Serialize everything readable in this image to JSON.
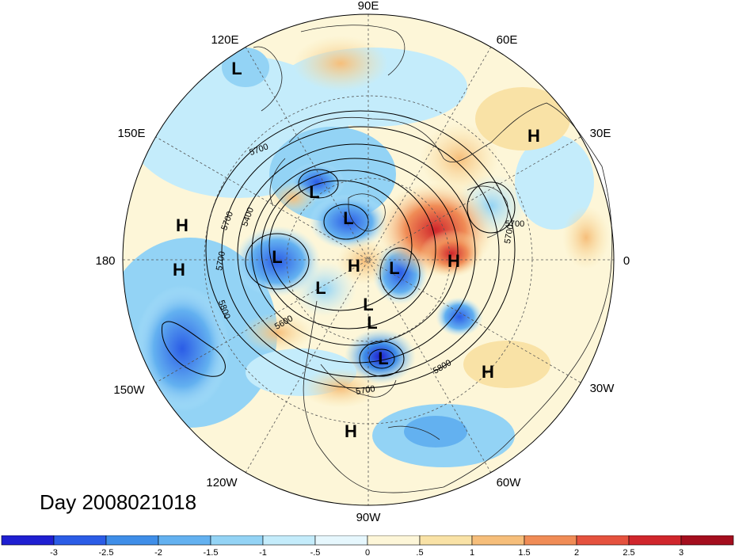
{
  "map": {
    "center_label_date": "Day 2008021018",
    "longitude_labels": [
      "90E",
      "60E",
      "30E",
      "0",
      "30W",
      "60W",
      "90W",
      "120W",
      "150W",
      "180",
      "150E",
      "120E"
    ],
    "highs_lows": [
      "L",
      "L",
      "L",
      "L",
      "L",
      "L",
      "L",
      "L",
      "L",
      "H",
      "H",
      "H",
      "H",
      "H",
      "H",
      "H"
    ],
    "contour_labels": [
      "5700",
      "5700",
      "5700",
      "5400",
      "5700",
      "5800",
      "5600",
      "5800",
      "5700",
      "5700"
    ],
    "colors": {
      "ocean_neutral": "#fdf6d8",
      "land_line": "#222222"
    }
  },
  "colorbar": {
    "tick_labels": [
      "-3",
      "-2.5",
      "-2",
      "-1.5",
      "-1",
      "-.5",
      "0",
      ".5",
      "1",
      "1.5",
      "2",
      "2.5",
      "3"
    ],
    "colors": [
      "#1f1fd1",
      "#2b5ce6",
      "#3f8ee8",
      "#63b1f0",
      "#93d3f5",
      "#c4ecfb",
      "#e6f7fd",
      "#fdf6d8",
      "#f9e2a6",
      "#f6be7a",
      "#f08c56",
      "#e5523e",
      "#d0262c",
      "#a40e1e"
    ]
  }
}
